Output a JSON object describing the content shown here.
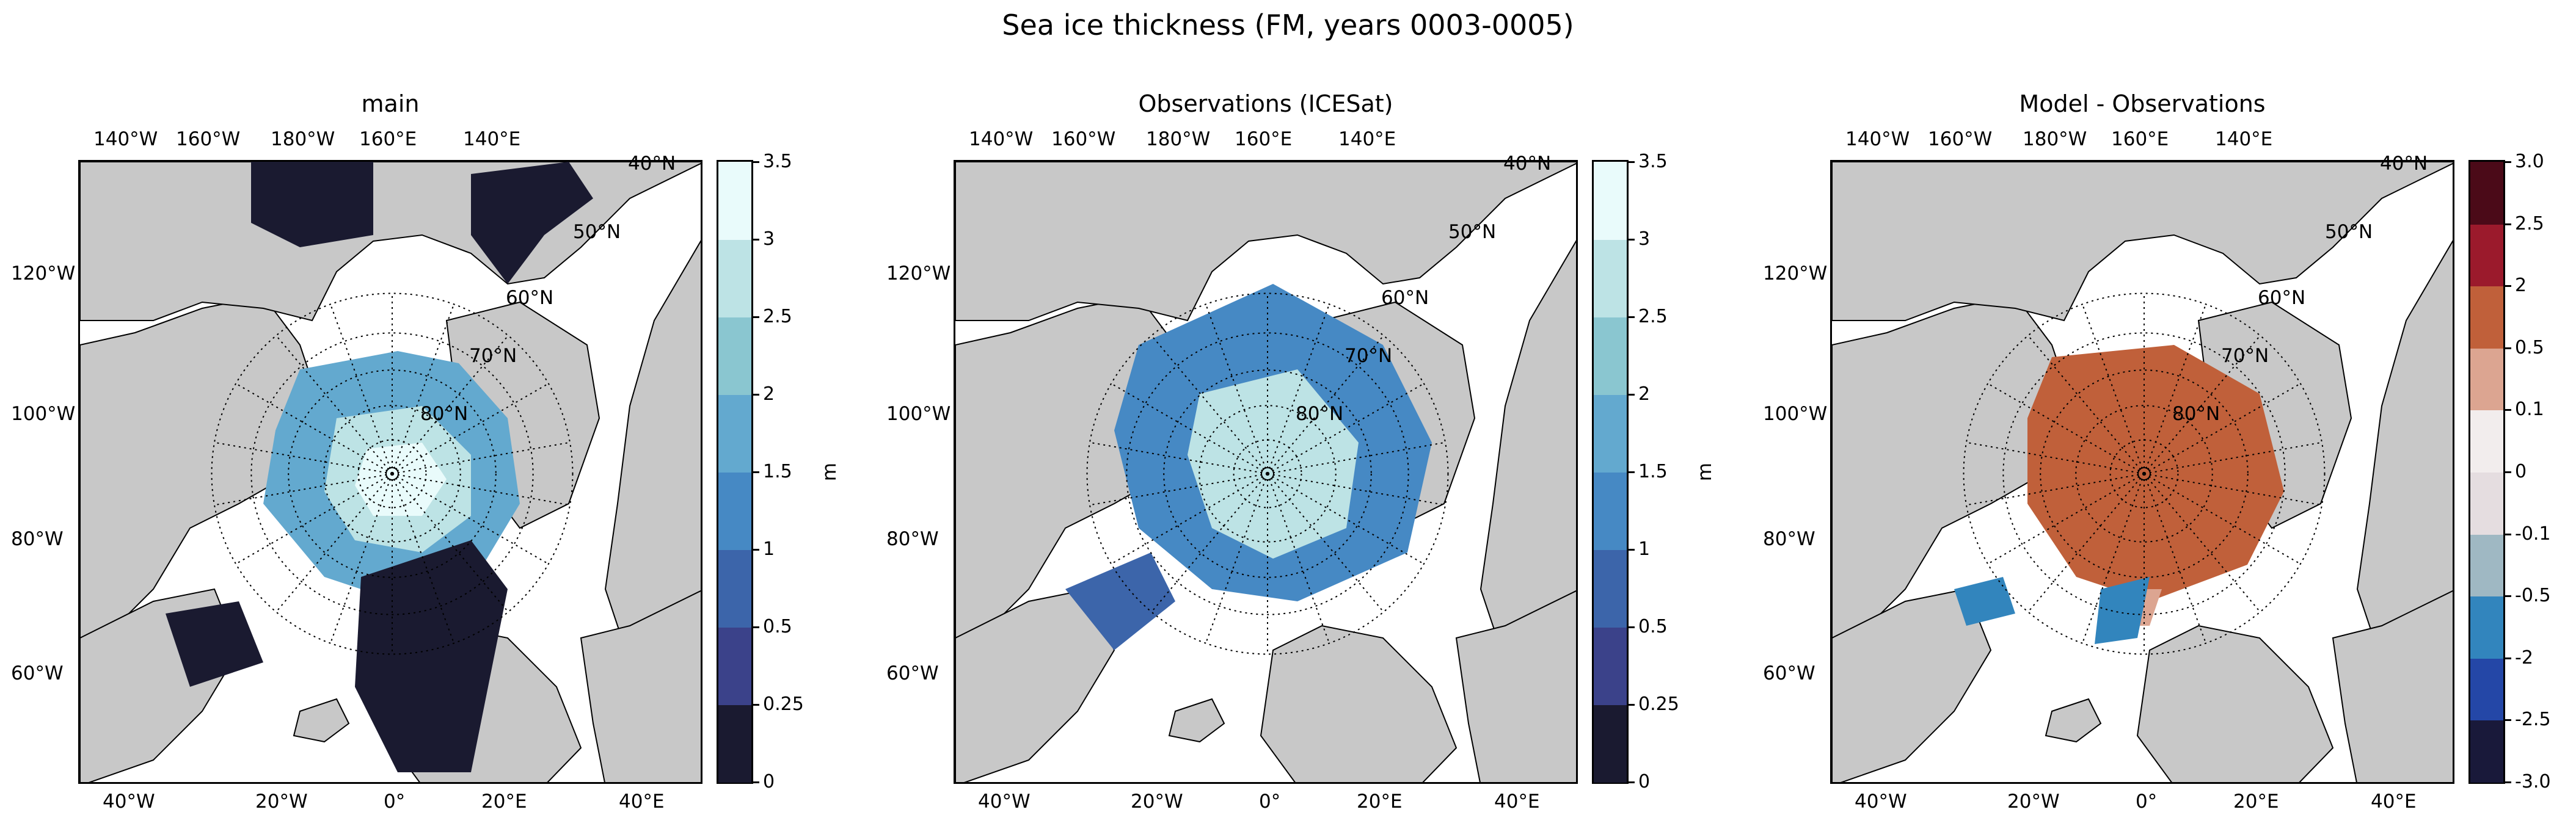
{
  "figure": {
    "title": "Sea ice thickness (FM, years 0003-0005)",
    "colors": {
      "land": "#c8c8c8",
      "ocean": "#ffffff",
      "grid": "#000000"
    }
  },
  "map_labels": {
    "top_lon": [
      "140°W",
      "160°W",
      "180°W",
      "160°E",
      "140°E"
    ],
    "left_lon": [
      "120°W",
      "100°W",
      "80°W",
      "60°W"
    ],
    "bottom_lon": [
      "40°W",
      "20°W",
      "0°",
      "20°E",
      "40°E"
    ],
    "lat": [
      "40°N",
      "50°N",
      "60°N",
      "70°N",
      "80°N"
    ]
  },
  "panels": [
    {
      "title": "main",
      "field": "model"
    },
    {
      "title": "Observations (ICESat)",
      "field": "observations"
    },
    {
      "title": "Model - Observations",
      "field": "difference"
    }
  ],
  "colorbars": {
    "thickness": {
      "unit": "m",
      "ticks": [
        "0",
        "0.25",
        "0.5",
        "1",
        "1.5",
        "2",
        "2.5",
        "3",
        "3.5"
      ],
      "colors": [
        "#1a1a30",
        "#3b428a",
        "#3c65aa",
        "#4689c4",
        "#63a9cf",
        "#8ac6d0",
        "#bde3e5",
        "#e9fbfb"
      ]
    },
    "difference": {
      "unit": "m",
      "ticks": [
        "-3.0",
        "-2.5",
        "-2",
        "-0.5",
        "-0.1",
        "0",
        "0.1",
        "0.5",
        "2",
        "2.5",
        "3.0"
      ],
      "colors": [
        "#19193a",
        "#2447a7",
        "#3285bd",
        "#9fb8c3",
        "#e5dde0",
        "#f2eded",
        "#dca591",
        "#c0603a",
        "#9b1a2c",
        "#4b0a18"
      ]
    }
  },
  "chart_data": {
    "type": "heatmap",
    "projection": "north polar stereographic",
    "lat_circles": [
      40,
      50,
      60,
      70,
      80
    ],
    "meridians_every_deg": 20,
    "thickness_bounds": [
      0,
      0.25,
      0.5,
      1,
      1.5,
      2,
      2.5,
      3,
      3.5
    ],
    "difference_bounds": [
      -3.0,
      -2.5,
      -2,
      -0.5,
      -0.1,
      0,
      0.1,
      0.5,
      2,
      2.5,
      3.0
    ]
  }
}
